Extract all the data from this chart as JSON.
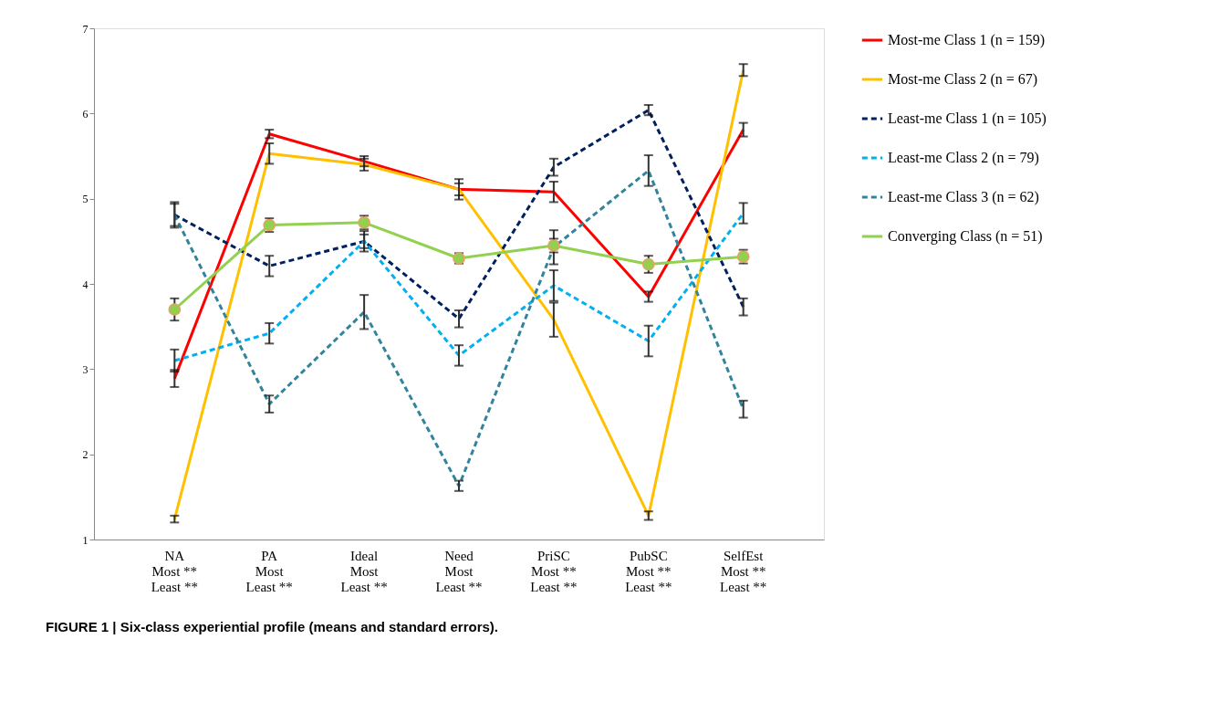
{
  "chart_data": {
    "type": "line",
    "title": "FIGURE 1 | Six-class experiential profile (means and standard errors).",
    "categories": [
      "NA\nMost **\nLeast **",
      "PA\nMost\nLeast **",
      "Ideal\nMost\nLeast **",
      "Need\nMost\nLeast **",
      "PriSC\nMost **\nLeast **",
      "PubSC\nMost **\nLeast **",
      "SelfEst\nMost **\nLeast **"
    ],
    "ylim": [
      1,
      7
    ],
    "yticks": [
      1,
      2,
      3,
      4,
      5,
      6,
      7
    ],
    "grid": false,
    "legend": "right",
    "marker": "none",
    "series": [
      {
        "name": "Most-me Class 1 (n = 159)",
        "color": "#ff0000",
        "line_style": "solid",
        "values": [
          2.89,
          5.76,
          5.44,
          5.11,
          5.08,
          3.85,
          5.81
        ],
        "errors": [
          0.1,
          0.05,
          0.06,
          0.12,
          0.12,
          0.06,
          0.08
        ]
      },
      {
        "name": "Most-me Class 2  (n = 67)",
        "color": "#ffc000",
        "line_style": "solid",
        "values": [
          1.24,
          5.53,
          5.4,
          5.11,
          3.58,
          1.28,
          6.51
        ],
        "errors": [
          0.04,
          0.12,
          0.07,
          0.07,
          0.2,
          0.05,
          0.07
        ]
      },
      {
        "name": "Least-me Class 1 (n = 105)",
        "color": "#002060",
        "line_style": "dashed",
        "values": [
          4.81,
          4.21,
          4.5,
          3.59,
          5.37,
          6.04,
          3.73
        ],
        "errors": [
          0.13,
          0.12,
          0.12,
          0.1,
          0.1,
          0.06,
          0.1
        ]
      },
      {
        "name": "Least-me Class 2 (n = 79)",
        "color": "#00b0f0",
        "line_style": "dashed",
        "values": [
          3.1,
          3.42,
          4.5,
          3.16,
          3.98,
          3.33,
          4.83
        ],
        "errors": [
          0.13,
          0.12,
          0.08,
          0.12,
          0.18,
          0.18,
          0.12
        ]
      },
      {
        "name": "Least-me Class 3 (n = 62)",
        "color": "#31849b",
        "line_style": "dashed",
        "values": [
          4.81,
          2.59,
          3.67,
          1.63,
          4.43,
          5.33,
          2.53
        ],
        "errors": [
          0.15,
          0.1,
          0.2,
          0.06,
          0.2,
          0.18,
          0.1
        ]
      },
      {
        "name": "Converging Class (n = 51)",
        "color": "#92d050",
        "line_style": "solid",
        "marker": "circle",
        "values": [
          3.7,
          4.69,
          4.72,
          4.3,
          4.45,
          4.23,
          4.32
        ],
        "errors": [
          0.13,
          0.08,
          0.08,
          0.06,
          0.08,
          0.1,
          0.08
        ]
      }
    ]
  }
}
